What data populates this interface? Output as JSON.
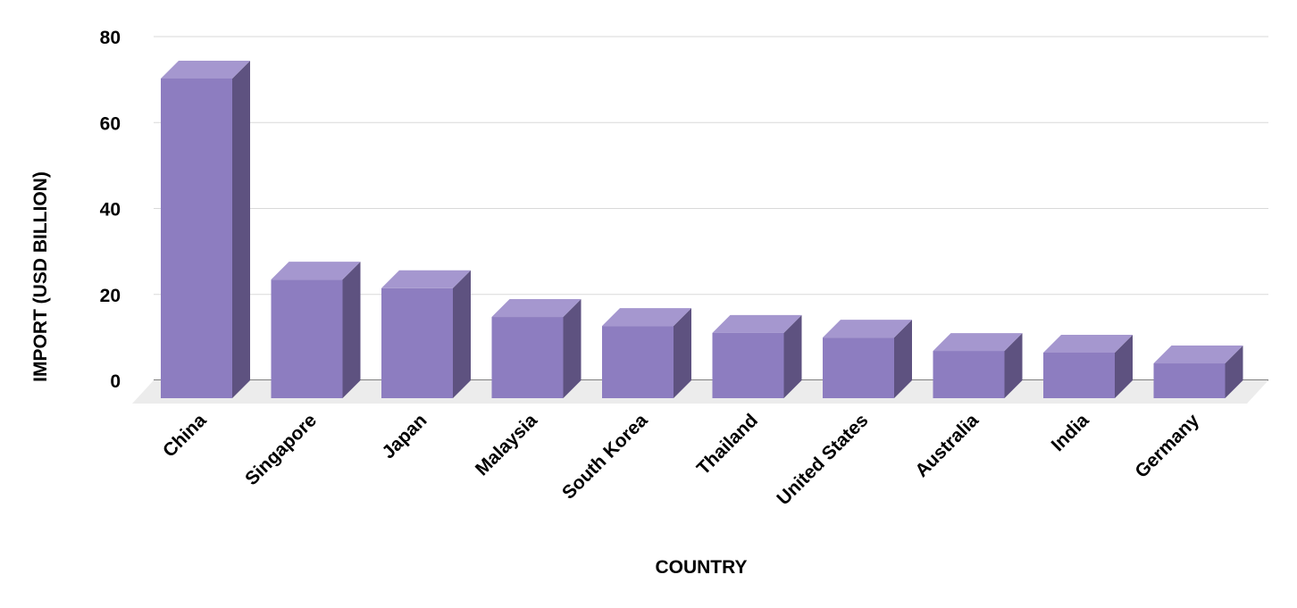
{
  "chart_data": {
    "type": "bar",
    "style": "3d-column",
    "title": "",
    "xlabel": "COUNTRY",
    "ylabel": "IMPORT (USD BILLION)",
    "ylim": [
      0,
      80
    ],
    "yticks": [
      "0",
      "20",
      "40",
      "60",
      "80"
    ],
    "grid": true,
    "categories": [
      "China",
      "Singapore",
      "Japan",
      "Malaysia",
      "South Korea",
      "Thailand",
      "United States",
      "Australia",
      "India",
      "Germany"
    ],
    "values": [
      74.4,
      27.6,
      25.6,
      18.9,
      16.8,
      15.2,
      14.1,
      11.0,
      10.6,
      8.1
    ],
    "colors": {
      "front": "#8d7dc0",
      "top": "#a597cf",
      "side": "#5e5280",
      "floor": "#ececec",
      "grid": "#d9d9d9"
    }
  }
}
